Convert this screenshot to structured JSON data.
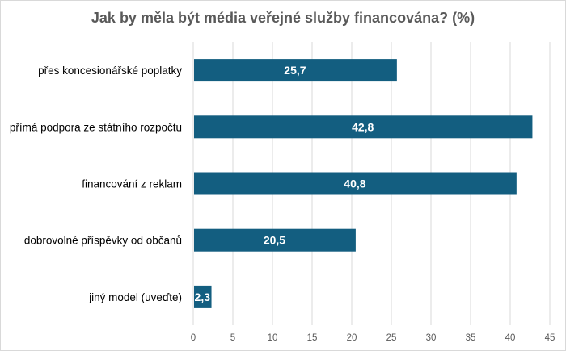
{
  "chart_data": {
    "type": "bar",
    "orientation": "horizontal",
    "title": "Jak by měla být média veřejné služby financována? (%)",
    "categories": [
      "přes koncesionářské poplatky",
      "přímá podpora ze státního rozpočtu",
      "financování z reklam",
      "dobrovolné příspěvky od občanů",
      "jiný model (uveďte)"
    ],
    "values": [
      25.7,
      42.8,
      40.8,
      20.5,
      2.3
    ],
    "data_labels": [
      "25,7",
      "42,8",
      "40,8",
      "20,5",
      "2,3"
    ],
    "xlim": [
      0,
      45
    ],
    "xticks": [
      "0",
      "5",
      "10",
      "15",
      "20",
      "25",
      "30",
      "35",
      "40",
      "45"
    ],
    "xlabel": "",
    "ylabel": "",
    "grid": "vertical",
    "legend": "none",
    "bar_color": "#135e80"
  }
}
